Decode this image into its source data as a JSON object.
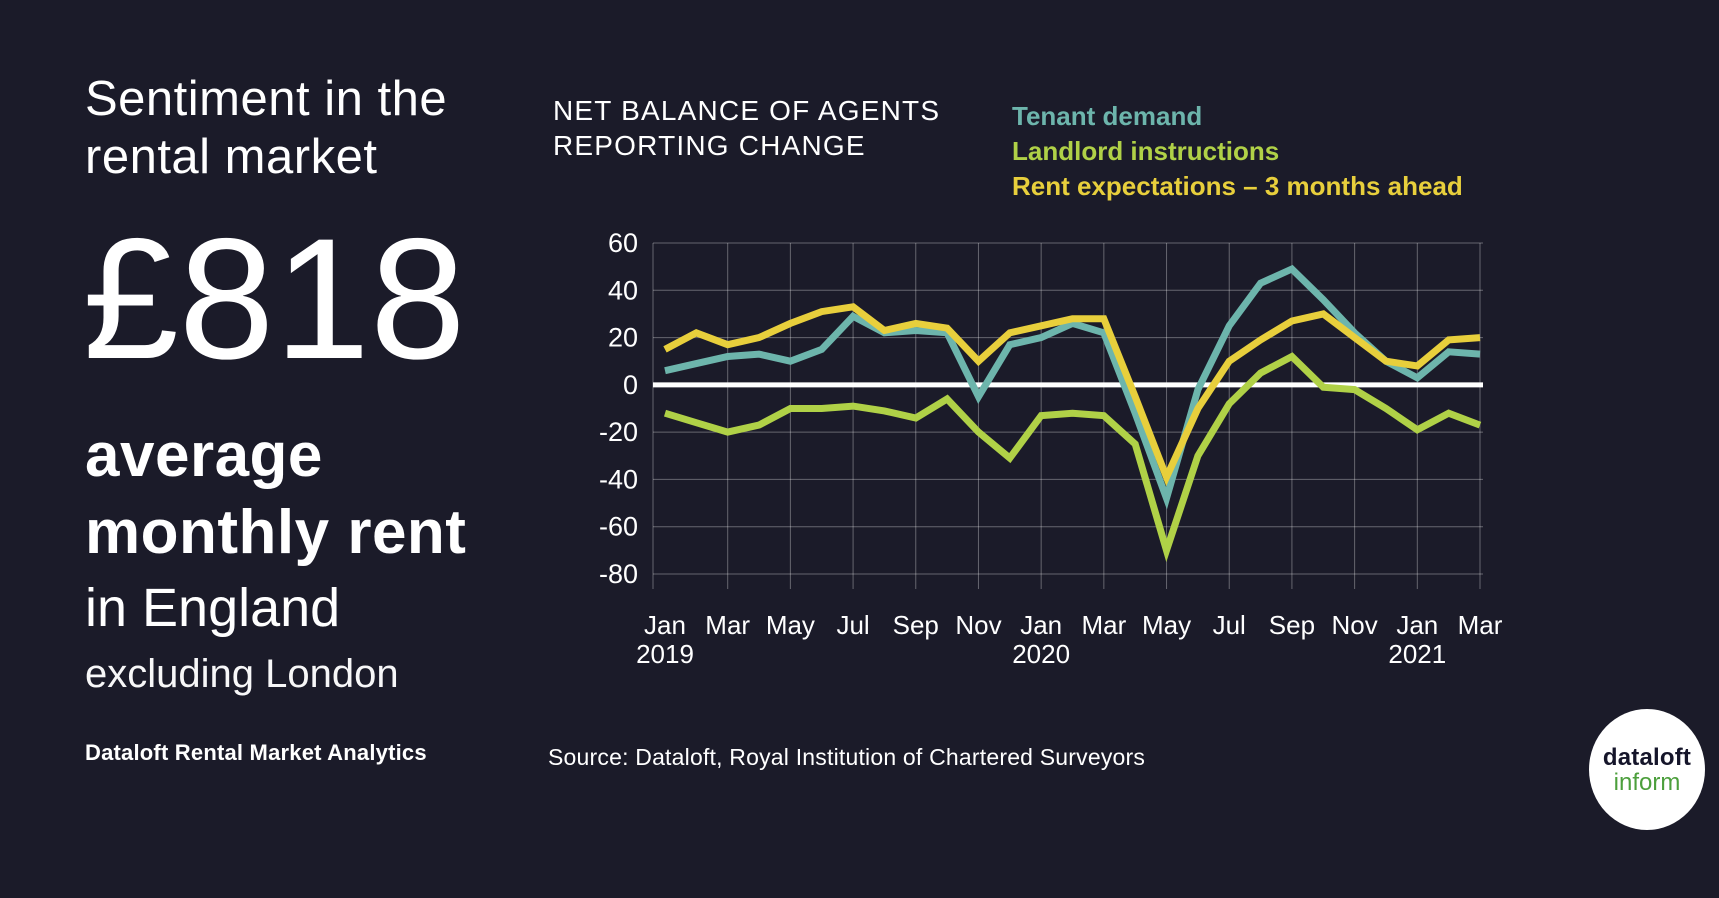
{
  "page": {
    "background": "#1b1b29"
  },
  "left_panel": {
    "headline_line1": "Sentiment in the",
    "headline_line2": "rental market",
    "stat_value": "£818",
    "stat_label_line1": "average",
    "stat_label_line2": "monthly rent",
    "region": "in England",
    "region_note": "excluding London",
    "footer": "Dataloft Rental Market Analytics"
  },
  "chart": {
    "title_line1": "NET BALANCE OF AGENTS",
    "title_line2": "REPORTING CHANGE",
    "source": "Source: Dataloft, Royal Institution of Chartered Surveyors"
  },
  "chart_data": {
    "type": "line",
    "title": "NET BALANCE OF AGENTS REPORTING CHANGE",
    "x": [
      "Jan 2019",
      "Feb 2019",
      "Mar 2019",
      "Apr 2019",
      "May 2019",
      "Jun 2019",
      "Jul 2019",
      "Aug 2019",
      "Sep 2019",
      "Oct 2019",
      "Nov 2019",
      "Dec 2019",
      "Jan 2020",
      "Feb 2020",
      "Mar 2020",
      "Apr 2020",
      "May 2020",
      "Jun 2020",
      "Jul 2020",
      "Aug 2020",
      "Sep 2020",
      "Oct 2020",
      "Nov 2020",
      "Dec 2020",
      "Jan 2021",
      "Feb 2021",
      "Mar 2021"
    ],
    "series": [
      {
        "name": "Tenant demand",
        "color": "#6db5ac",
        "values": [
          6,
          9,
          12,
          13,
          10,
          15,
          29,
          22,
          23,
          22,
          -5,
          17,
          20,
          26,
          22,
          -12,
          -48,
          -2,
          25,
          43,
          49,
          36,
          22,
          10,
          3,
          14,
          13
        ]
      },
      {
        "name": "Landlord instructions",
        "color": "#b0d147",
        "values": [
          -12,
          -16,
          -20,
          -17,
          -10,
          -10,
          -9,
          -11,
          -14,
          -6,
          -20,
          -31,
          -13,
          -12,
          -13,
          -25,
          -70,
          -30,
          -8,
          5,
          12,
          -1,
          -2,
          -10,
          -19,
          -12,
          -17
        ]
      },
      {
        "name": "Rent expectations – 3 months ahead",
        "color": "#e8cf3c",
        "values": [
          15,
          22,
          17,
          20,
          26,
          31,
          33,
          23,
          26,
          24,
          10,
          22,
          25,
          28,
          28,
          -5,
          -39,
          -10,
          10,
          19,
          27,
          30,
          20,
          10,
          8,
          19,
          20
        ]
      }
    ],
    "ylim": [
      -80,
      60
    ],
    "yticks": [
      60,
      40,
      20,
      0,
      -20,
      -40,
      -60,
      -80
    ],
    "x_tick_labels": [
      {
        "month": "Jan",
        "year": "2019"
      },
      {
        "month": "Mar"
      },
      {
        "month": "May"
      },
      {
        "month": "Jul"
      },
      {
        "month": "Sep"
      },
      {
        "month": "Nov"
      },
      {
        "month": "Jan",
        "year": "2020"
      },
      {
        "month": "Mar"
      },
      {
        "month": "May"
      },
      {
        "month": "Jul"
      },
      {
        "month": "Sep"
      },
      {
        "month": "Nov"
      },
      {
        "month": "Jan",
        "year": "2021"
      },
      {
        "month": "Mar"
      }
    ],
    "zero_line": true,
    "grid": true,
    "legend_position": "top-right"
  },
  "logo": {
    "line1": "dataloft",
    "line2": "inform",
    "line2_color": "#4c9f3c"
  },
  "style": {
    "grid_color": "rgba(255,255,255,0.33)",
    "zero_line_color": "#ffffff",
    "tick_label_color": "#ffffff"
  }
}
